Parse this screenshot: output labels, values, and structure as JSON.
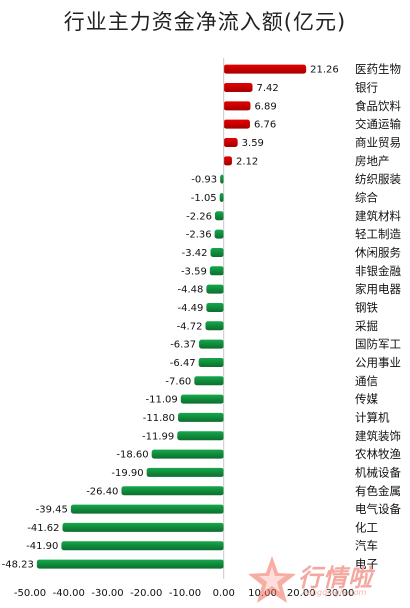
{
  "chart_data": {
    "type": "bar",
    "orientation": "horizontal",
    "title": "行业主力资金净流入额(亿元)",
    "categories": [
      "医药生物",
      "银行",
      "食品饮料",
      "交通运输",
      "商业贸易",
      "房地产",
      "纺织服装",
      "综合",
      "建筑材料",
      "轻工制造",
      "休闲服务",
      "非银金融",
      "家用电器",
      "钢铁",
      "采掘",
      "国防军工",
      "公用事业",
      "通信",
      "传媒",
      "计算机",
      "建筑装饰",
      "农林牧渔",
      "机械设备",
      "有色金属",
      "电气设备",
      "化工",
      "汽车",
      "电子"
    ],
    "values": [
      21.26,
      7.42,
      6.89,
      6.76,
      3.59,
      2.12,
      -0.93,
      -1.05,
      -2.26,
      -2.36,
      -3.42,
      -3.59,
      -4.48,
      -4.49,
      -4.72,
      -6.37,
      -6.47,
      -7.6,
      -11.09,
      -11.8,
      -11.99,
      -18.6,
      -19.9,
      -26.4,
      -39.45,
      -41.62,
      -41.9,
      -48.23
    ],
    "value_labels": [
      "21.26",
      "7.42",
      "6.89",
      "6.76",
      "3.59",
      "2.12",
      "-0.93",
      "-1.05",
      "-2.26",
      "-2.36",
      "-3.42",
      "-3.59",
      "-4.48",
      "-4.49",
      "-4.72",
      "-6.37",
      "-6.47",
      "-7.60",
      "-11.09",
      "-11.80",
      "-11.99",
      "-18.60",
      "-19.90",
      "-26.40",
      "-39.45",
      "-41.62",
      "-41.90",
      "-48.23"
    ],
    "xlim": [
      -50,
      30
    ],
    "x_ticks": [
      "-50.00",
      "-40.00",
      "-30.00",
      "-20.00",
      "-10.00",
      "0.00",
      "10.00",
      "20.00",
      "30.00"
    ],
    "x_tick_values": [
      -50,
      -40,
      -30,
      -20,
      -10,
      0,
      10,
      20,
      30
    ],
    "grid": false,
    "legend": false,
    "colors": {
      "positive": "#e60000",
      "positive_dark": "#a30000",
      "negative": "#16a84a",
      "negative_dark": "#0c6e2f"
    }
  },
  "watermark": {
    "text": "行情啦",
    "sub": "hangqingla.com"
  }
}
